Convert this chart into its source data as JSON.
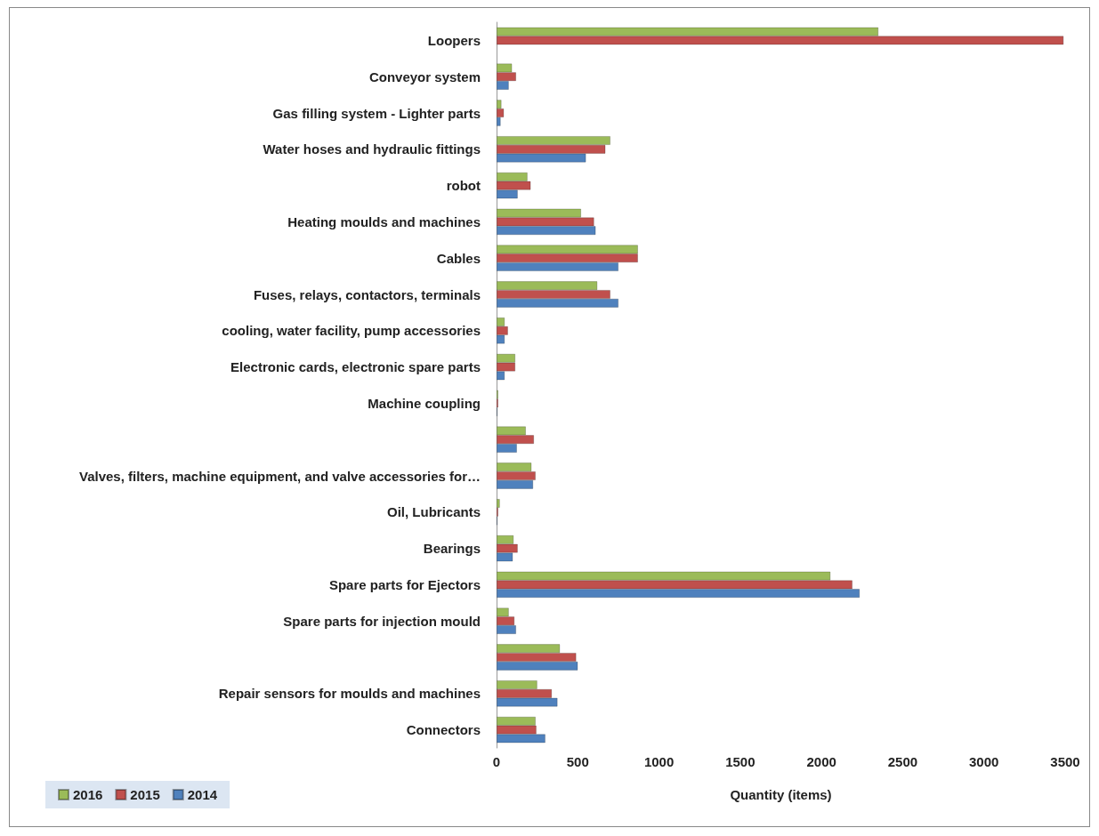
{
  "chart_data": {
    "type": "bar",
    "orientation": "horizontal",
    "xlabel": "Quantity (items)",
    "categories": [
      "Loopers",
      "Conveyor system",
      "Gas filling system - Lighter parts",
      "Water hoses and hydraulic fittings",
      "robot",
      "Heating moulds and machines",
      "Cables",
      "Fuses, relays, contactors, terminals",
      "cooling, water facility, pump accessories",
      "Electronic cards, electronic spare parts",
      "Machine coupling",
      null,
      "Valves, filters, machine equipment, and valve accessories for…",
      "Oil, Lubricants",
      "Bearings",
      "Spare parts for Ejectors",
      "Spare parts for injection mould",
      null,
      "Repair sensors for moulds and machines",
      "Connectors"
    ],
    "series": [
      {
        "name": "2016",
        "color": "#9bbb59",
        "values": [
          2350,
          95,
          30,
          700,
          190,
          520,
          870,
          620,
          50,
          115,
          10,
          180,
          215,
          20,
          105,
          2055,
          75,
          390,
          250,
          240
        ]
      },
      {
        "name": "2015",
        "color": "#c0504d",
        "values": [
          3490,
          120,
          45,
          670,
          210,
          600,
          870,
          700,
          70,
          115,
          10,
          230,
          240,
          10,
          130,
          2190,
          110,
          490,
          340,
          245
        ]
      },
      {
        "name": "2014",
        "color": "#4f81bd",
        "values": [
          null,
          75,
          25,
          550,
          130,
          610,
          750,
          750,
          50,
          50,
          5,
          125,
          225,
          5,
          100,
          2235,
          120,
          500,
          375,
          300
        ]
      }
    ],
    "xlim": [
      0,
      3500
    ],
    "xticks": [
      0,
      500,
      1000,
      1500,
      2000,
      2500,
      3000,
      3500
    ],
    "grid": false,
    "legend": "bottom left"
  }
}
